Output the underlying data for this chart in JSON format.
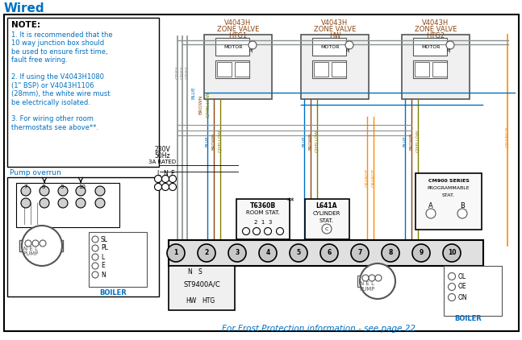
{
  "title": "Wired",
  "title_color": "#0070C0",
  "title_fontsize": 11,
  "bg_color": "#ffffff",
  "note_title": "NOTE:",
  "note_lines": [
    "1. It is recommended that the",
    "10 way junction box should",
    "be used to ensure first time,",
    "fault free wiring.",
    "",
    "2. If using the V4043H1080",
    "(1\" BSP) or V4043H1106",
    "(28mm), the white wire must",
    "be electrically isolated.",
    "",
    "3. For wiring other room",
    "thermostats see above**."
  ],
  "pump_overrun_label": "Pump overrun",
  "frost_text": "For Frost Protection information - see page 22",
  "frost_color": "#0070C0",
  "valve_labels": [
    [
      "V4043H",
      "ZONE VALVE",
      "HTG1"
    ],
    [
      "V4043H",
      "ZONE VALVE",
      "HW"
    ],
    [
      "V4043H",
      "ZONE VALVE",
      "HTG2"
    ]
  ],
  "valve_color": "#8B4513",
  "supply_label": [
    "230V",
    "50Hz",
    "3A RATED"
  ],
  "wire_colors": {
    "grey": "#8a9090",
    "blue": "#0070C0",
    "brown": "#8B4513",
    "gyellow": "#808000",
    "orange": "#FF8C00",
    "black": "#000000",
    "white": "#ffffff",
    "dkgrey": "#555555"
  },
  "junction_numbers": [
    "1",
    "2",
    "3",
    "4",
    "5",
    "6",
    "7",
    "8",
    "9",
    "10"
  ],
  "t6360b_label": [
    "T6360B",
    "ROOM STAT.",
    "2 1 3"
  ],
  "l641a_label": [
    "L641A",
    "CYLINDER",
    "STAT."
  ],
  "cm900_label": [
    "CM900 SERIES",
    "PROGRAMMABLE",
    "STAT."
  ],
  "boiler_label": "BOILER",
  "pump_label": "PUMP",
  "boiler_terminals_right": [
    "OL",
    "OE",
    "ON"
  ],
  "boiler_terminals_left": [
    "SL",
    "PL",
    "L",
    "E",
    "N"
  ],
  "st9400_label": "ST9400A/C",
  "hw_htg": [
    "HW",
    "HTG"
  ]
}
